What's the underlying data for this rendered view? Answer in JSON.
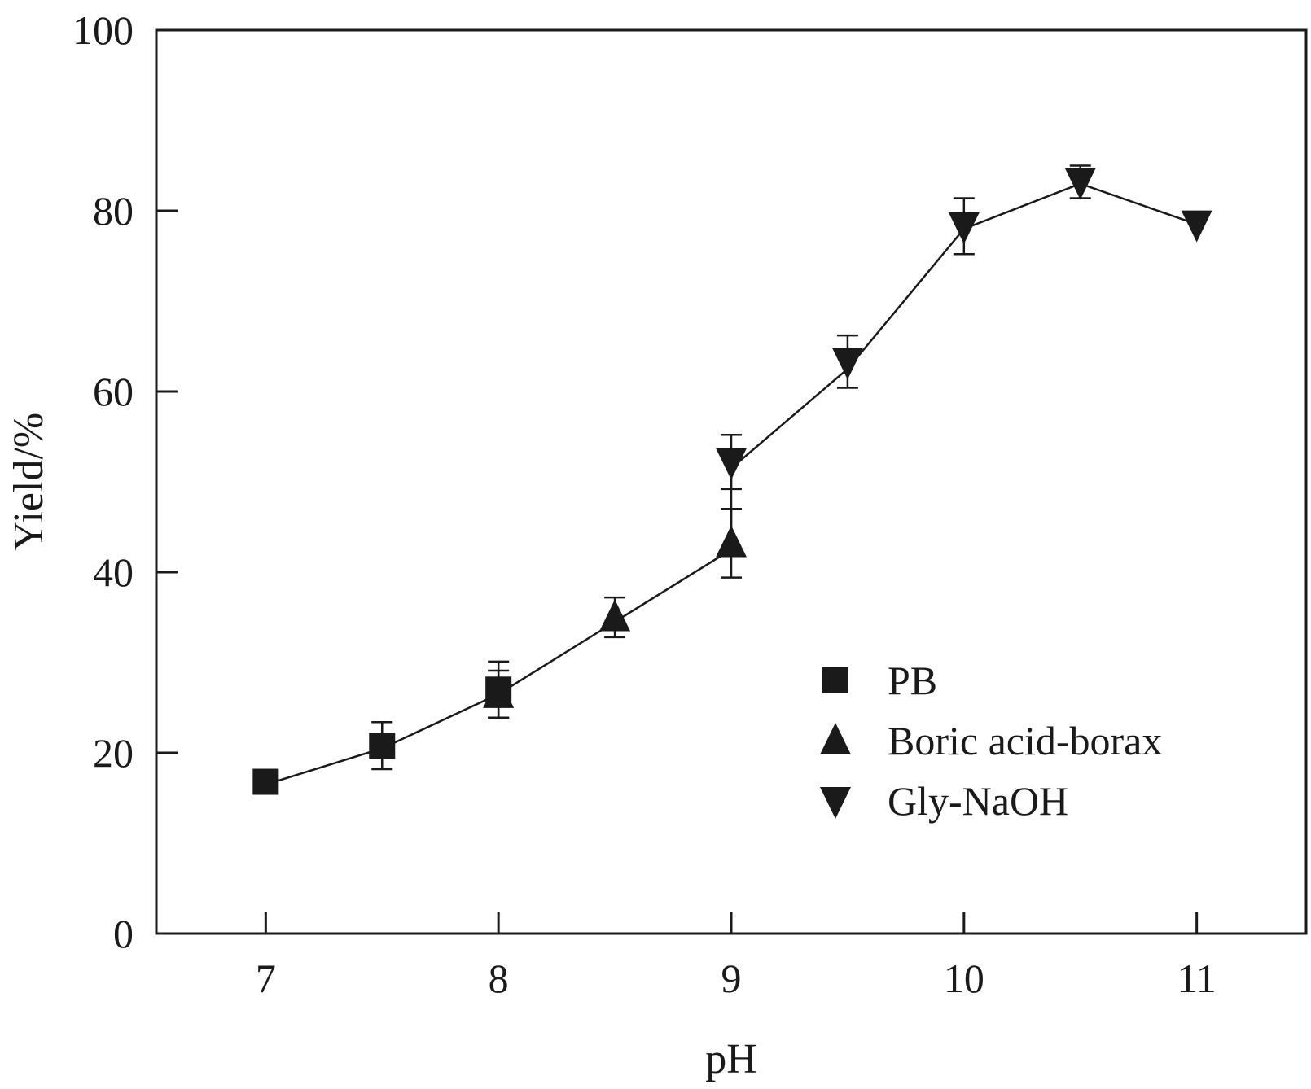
{
  "chart_data": {
    "type": "line",
    "xlabel": "pH",
    "ylabel": "Yield/%",
    "xlim": [
      6.53,
      11.47
    ],
    "ylim": [
      0,
      100
    ],
    "xticks": [
      7,
      8,
      9,
      10,
      11
    ],
    "yticks": [
      0,
      20,
      40,
      60,
      80,
      100
    ],
    "xtick_labels": [
      "7",
      "8",
      "9",
      "10",
      "11"
    ],
    "ytick_labels": [
      "0",
      "20",
      "40",
      "60",
      "80",
      "100"
    ],
    "grid": false,
    "legend_position": "bottom-right",
    "colors": {
      "line": "#1a1a1a",
      "marker": "#1a1a1a",
      "axis": "#1a1a1a"
    },
    "connecting_line": [
      [
        7.0,
        16.5
      ],
      [
        7.5,
        20.5
      ],
      [
        8.0,
        26.5
      ],
      [
        8.5,
        34.5
      ],
      [
        9.0,
        42.5
      ],
      [
        9.0,
        51.5
      ],
      [
        9.5,
        62.5
      ],
      [
        10.0,
        78.0
      ],
      [
        10.5,
        83.0
      ],
      [
        11.0,
        78.5
      ]
    ],
    "series": [
      {
        "name": "PB",
        "marker": "square",
        "points": [
          {
            "x": 7.0,
            "y": 16.8,
            "err": null
          },
          {
            "x": 7.5,
            "y": 20.8,
            "err": 2.6
          },
          {
            "x": 8.0,
            "y": 27.0,
            "err": 3.1
          }
        ]
      },
      {
        "name": "Boric acid-borax",
        "marker": "triangle-up",
        "points": [
          {
            "x": 8.0,
            "y": 26.5,
            "err": 2.6
          },
          {
            "x": 8.5,
            "y": 35.0,
            "err": 2.2
          },
          {
            "x": 9.0,
            "y": 43.2,
            "err": 3.8
          }
        ]
      },
      {
        "name": "Gly-NaOH",
        "marker": "triangle-down",
        "points": [
          {
            "x": 9.0,
            "y": 52.2,
            "err": 3.0
          },
          {
            "x": 9.5,
            "y": 63.3,
            "err": 2.9
          },
          {
            "x": 10.0,
            "y": 78.3,
            "err": 3.1
          },
          {
            "x": 10.5,
            "y": 83.2,
            "err": 1.8
          },
          {
            "x": 11.0,
            "y": 78.5,
            "err": null
          }
        ]
      }
    ]
  }
}
